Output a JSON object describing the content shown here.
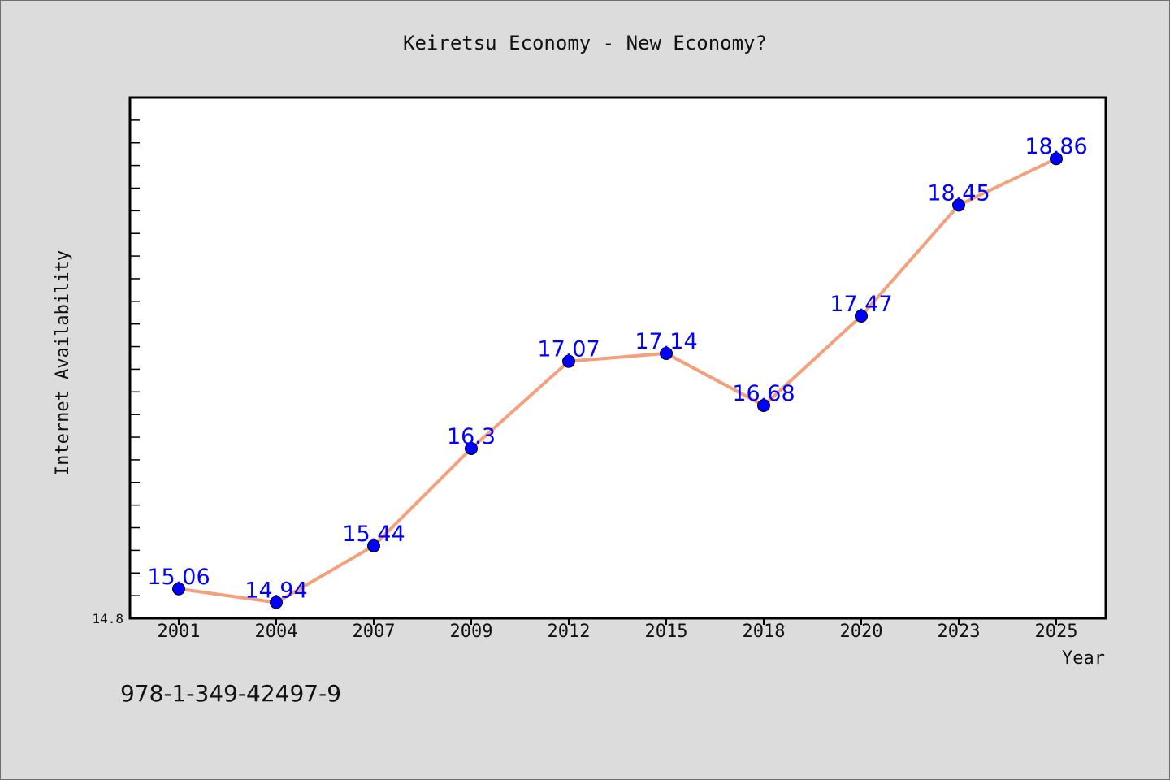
{
  "chart_data": {
    "type": "line",
    "title": "Keiretsu Economy - New Economy?",
    "xlabel": "Year",
    "ylabel": "Internet Availability",
    "categories": [
      "2001",
      "2004",
      "2007",
      "2009",
      "2012",
      "2015",
      "2018",
      "2020",
      "2023",
      "2025"
    ],
    "series": [
      {
        "values": [
          15.06,
          14.94,
          15.44,
          16.3,
          17.07,
          17.14,
          16.68,
          17.47,
          18.45,
          18.86
        ],
        "line_color": "#f4a07c",
        "marker_color": "#0000ff"
      }
    ],
    "ylim": [
      14.8,
      19.4
    ],
    "ytick_labels": [
      "14.8"
    ],
    "grid": false,
    "legend": "none",
    "plot_background": "#ffffff",
    "figure_background": "#dcdcdc"
  },
  "footer": {
    "text": "978-1-349-42497-9"
  }
}
